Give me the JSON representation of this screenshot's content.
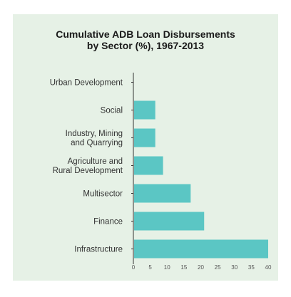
{
  "chart_data": {
    "type": "bar",
    "orientation": "horizontal",
    "title_lines": [
      "Cumulative ADB Loan Disbursements",
      "by Sector (%), 1967-2013"
    ],
    "categories": [
      "Urban Development",
      "Social",
      "Industry, Mining\nand Quarrying",
      "Agriculture and\nRural Development",
      "Multisector",
      "Finance",
      "Infrastructure"
    ],
    "values": [
      0,
      6.5,
      6.5,
      8.8,
      17,
      21,
      40
    ],
    "xlim": [
      0,
      40
    ],
    "xticks": [
      0,
      5,
      10,
      15,
      20,
      25,
      30,
      35,
      40
    ],
    "grid": false,
    "bar_color": "#5bc6c4",
    "background_color": "#e6f1e6"
  }
}
